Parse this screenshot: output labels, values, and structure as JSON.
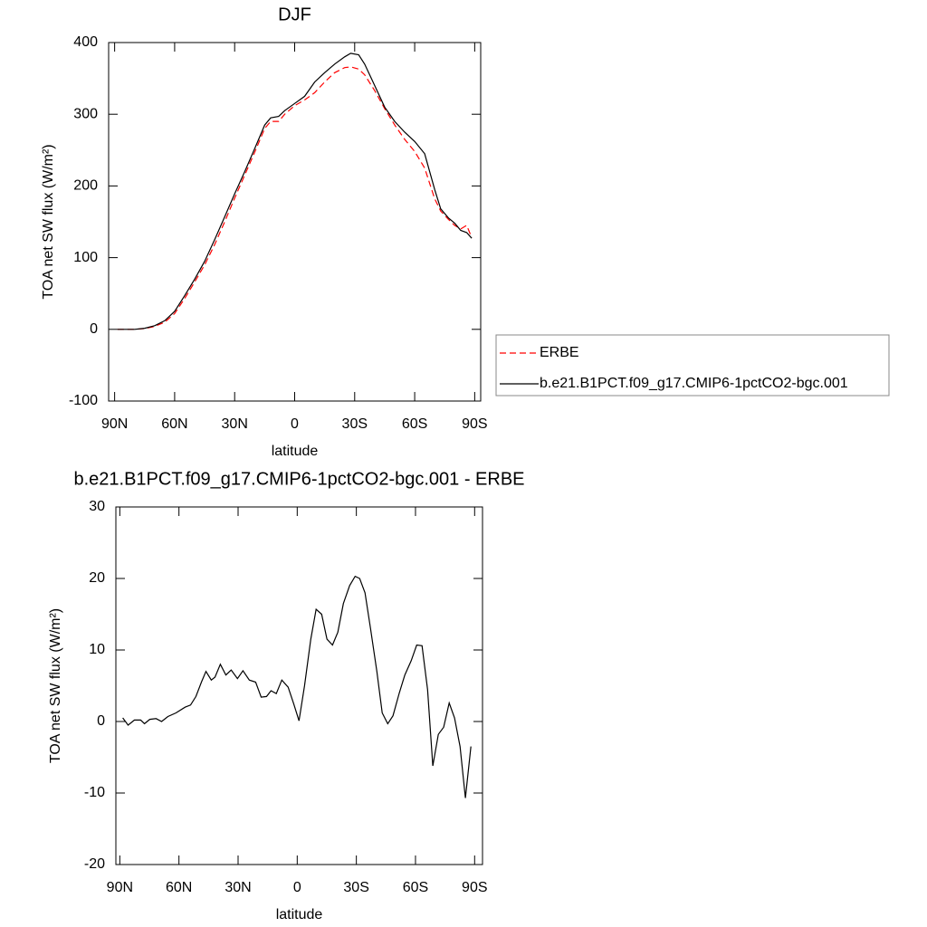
{
  "chart_data": [
    {
      "type": "line",
      "title": "DJF",
      "x_label": "latitude",
      "y_label": "TOA net SW flux (W/m²)",
      "x": [
        88.5,
        80,
        75,
        70,
        65,
        60,
        55,
        50,
        45,
        40,
        35,
        30,
        25,
        20,
        15,
        12,
        8,
        5,
        0,
        -5,
        -10,
        -15,
        -20,
        -25,
        -28,
        -32,
        -35,
        -40,
        -45,
        -50,
        -55,
        -60,
        -65,
        -70,
        -73,
        -77,
        -80,
        -83,
        -86,
        -88.5
      ],
      "series": [
        {
          "name": "ERBE",
          "color": "#ff0000",
          "dash": true,
          "values": [
            0,
            0,
            1,
            4,
            10,
            22,
            43,
            66,
            90,
            118,
            150,
            183,
            215,
            247,
            280,
            290,
            290,
            300,
            312,
            320,
            330,
            345,
            358,
            365,
            366,
            363,
            355,
            333,
            308,
            285,
            265,
            248,
            225,
            182,
            165,
            153,
            145,
            140,
            145,
            128
          ]
        },
        {
          "name": "b.e21.B1PCT.f09_g17.CMIP6-1pctCO2-bgc.001",
          "color": "#000000",
          "dash": false,
          "values": [
            0,
            0,
            1.5,
            5,
            12,
            25,
            47,
            70,
            95,
            125,
            157,
            189,
            220,
            252,
            285,
            295,
            297,
            305,
            315,
            325,
            345,
            358,
            370,
            380,
            385,
            383,
            370,
            340,
            310,
            290,
            275,
            262,
            245,
            195,
            168,
            155,
            148,
            138,
            135,
            127
          ]
        }
      ],
      "xlim": [
        93,
        -93
      ],
      "xticks": [
        {
          "value": 90,
          "label": "90N"
        },
        {
          "value": 60,
          "label": "60N"
        },
        {
          "value": 30,
          "label": "30N"
        },
        0,
        {
          "value": -30,
          "label": "30S"
        },
        {
          "value": -60,
          "label": "60S"
        },
        {
          "value": -90,
          "label": "90S"
        }
      ],
      "ylim": [
        -100,
        400
      ],
      "yticks": [
        -100,
        0,
        100,
        200,
        300,
        400
      ],
      "legend": "right"
    },
    {
      "type": "line",
      "title": "b.e21.B1PCT.f09_g17.CMIP6-1pctCO2-bgc.001 - ERBE",
      "x_label": "latitude",
      "y_label": "TOA net SW flux (W/m²)",
      "x": [
        88.5,
        85.8,
        82.6,
        79.4,
        77.5,
        74.8,
        71.6,
        68.8,
        65.6,
        61.5,
        56.9,
        54.1,
        51.4,
        48.6,
        46.3,
        43.6,
        41.7,
        39.0,
        36.2,
        33.5,
        30.3,
        27.5,
        24.3,
        21.1,
        18.3,
        15.6,
        13.3,
        10.6,
        7.8,
        4.6,
        1.8,
        -0.9,
        -3.7,
        -6.9,
        -9.6,
        -12.4,
        -15.1,
        -17.9,
        -20.6,
        -23.4,
        -26.6,
        -29.4,
        -31.7,
        -34.4,
        -37.2,
        -40.4,
        -43.1,
        -45.9,
        -48.6,
        -51.8,
        -54.6,
        -57.8,
        -60.6,
        -63.3,
        -66.1,
        -68.8,
        -71.6,
        -74.3,
        -77.1,
        -79.8,
        -82.6,
        -85.3,
        -88.1
      ],
      "series": [
        {
          "color": "#000000",
          "dash": false,
          "values": [
            0.5,
            -0.5,
            0.2,
            0.2,
            -0.3,
            0.3,
            0.4,
            0,
            0.7,
            1.2,
            2,
            2.3,
            3.5,
            5.5,
            7,
            5.8,
            6.2,
            8,
            6.5,
            7.2,
            6,
            7.1,
            5.8,
            5.5,
            3.4,
            3.5,
            4.3,
            3.9,
            5.8,
            4.8,
            2.5,
            0.1,
            5,
            11.5,
            15.7,
            15,
            11.5,
            10.7,
            12.5,
            16.5,
            19,
            20.3,
            20,
            18,
            13,
            7,
            1.2,
            -0.3,
            0.8,
            4,
            6.5,
            8.5,
            10.7,
            10.6,
            4.5,
            -6.2,
            -1.8,
            -0.8,
            2.6,
            0.5,
            -3.5,
            -10.7,
            -3.5
          ]
        }
      ],
      "xlim": [
        92,
        -94
      ],
      "xticks": [
        {
          "value": 90,
          "label": "90N"
        },
        {
          "value": 60,
          "label": "60N"
        },
        {
          "value": 30,
          "label": "30N"
        },
        0,
        {
          "value": -30,
          "label": "30S"
        },
        {
          "value": -60,
          "label": "60S"
        },
        {
          "value": -90,
          "label": "90S"
        }
      ],
      "ylim": [
        -20,
        30
      ],
      "yticks": [
        -20,
        -10,
        0,
        10,
        20,
        30
      ]
    }
  ]
}
